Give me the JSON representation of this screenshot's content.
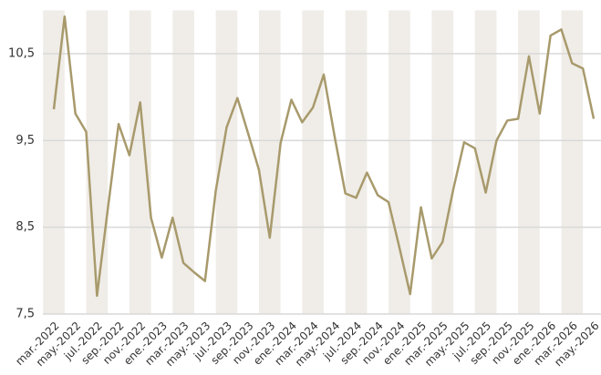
{
  "chart_data": {
    "type": "line",
    "categories": [
      "mar.-2022",
      null,
      "may.-2022",
      null,
      "jul.-2022",
      null,
      "sep.-2022",
      null,
      "nov.-2022",
      null,
      "ene.-2023",
      null,
      "mar.-2023",
      null,
      "may.-2023",
      null,
      "jul.-2023",
      null,
      "sep.-2023",
      null,
      "nov.-2023",
      null,
      "ene.-2024",
      null,
      "mar.-2024",
      null,
      "may.-2024",
      null,
      "jul.-2024",
      null,
      "sep.-2024",
      null,
      "nov.-2024",
      null,
      "ene.-2025",
      null,
      "mar.-2025",
      null,
      "may.-2025",
      null,
      "jul.-2025",
      null,
      "sep.-2025",
      null,
      "nov.-2025",
      null,
      "ene.-2026",
      null,
      "mar.-2026",
      null,
      "may.-2026"
    ],
    "values": [
      9.86,
      10.93,
      9.81,
      9.6,
      7.71,
      8.71,
      9.69,
      9.33,
      9.94,
      8.61,
      8.15,
      8.61,
      8.09,
      7.98,
      7.88,
      8.92,
      9.65,
      9.99,
      9.58,
      9.16,
      8.38,
      9.47,
      9.97,
      9.71,
      9.88,
      10.26,
      9.55,
      8.89,
      8.84,
      9.13,
      8.87,
      8.79,
      8.27,
      7.73,
      8.73,
      8.14,
      8.33,
      8.94,
      9.48,
      9.41,
      8.9,
      9.5,
      9.73,
      9.75,
      10.47,
      9.81,
      10.71,
      10.78,
      10.39,
      10.33,
      9.75
    ],
    "color": "#a89a6c",
    "ylim": [
      7.5,
      11
    ],
    "yticks": [
      {
        "value": 7.5,
        "label": "7,5"
      },
      {
        "value": 8.5,
        "label": "8,5"
      },
      {
        "value": 9.5,
        "label": "9,5"
      },
      {
        "value": 10.5,
        "label": "10,5"
      }
    ],
    "grid": true
  }
}
